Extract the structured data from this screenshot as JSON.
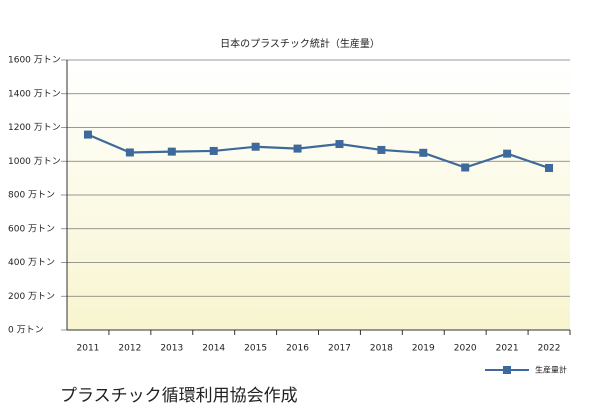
{
  "chart_data": {
    "type": "line",
    "title": "日本のプラスチック統計（生産量）",
    "categories": [
      "2011",
      "2012",
      "2013",
      "2014",
      "2015",
      "2016",
      "2017",
      "2018",
      "2019",
      "2020",
      "2021",
      "2022"
    ],
    "series": [
      {
        "name": "生産量計",
        "color": "#3d6a9b",
        "values": [
          1158,
          1052,
          1057,
          1061,
          1086,
          1075,
          1102,
          1067,
          1050,
          963,
          1045,
          960
        ]
      }
    ],
    "ylim": [
      0,
      1600
    ],
    "yticks": [
      {
        "value": 0,
        "label": "0 万トン"
      },
      {
        "value": 200,
        "label": "200 万トン"
      },
      {
        "value": 400,
        "label": "400 万トン"
      },
      {
        "value": 600,
        "label": "600 万トン"
      },
      {
        "value": 800,
        "label": "800 万トン"
      },
      {
        "value": 1000,
        "label": "1000 万トン"
      },
      {
        "value": 1200,
        "label": "1200 万トン"
      },
      {
        "value": 1400,
        "label": "1400 万トン"
      },
      {
        "value": 1600,
        "label": "1600 万トン"
      }
    ],
    "grid": true,
    "legend": "bottom-right",
    "source": "プラスチック循環利用協会作成"
  }
}
